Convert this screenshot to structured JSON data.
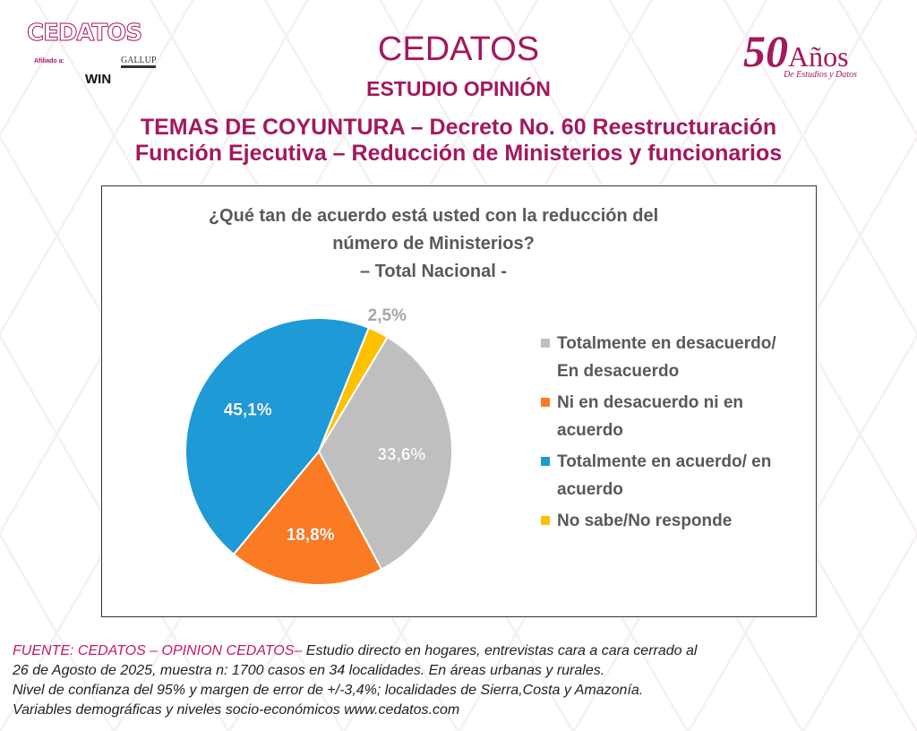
{
  "header": {
    "logo": "CEDATOS",
    "affiliated": "Afiliado a:",
    "win": "WIN",
    "gallup": "GALLUP",
    "title": "CEDATOS",
    "subtitle": "ESTUDIO OPINIÓN",
    "topic_line1": "TEMAS DE COYUNTURA – Decreto No. 60 Reestructuración",
    "topic_line2": "Función Ejecutiva – Reducción de Ministerios y funcionarios",
    "anniv_num": "50",
    "anniv_word": "Años",
    "anniv_sub": "De Estudios y Datos"
  },
  "chart_data": {
    "type": "pie",
    "title_line1": "¿Qué tan de acuerdo está usted con la reducción del",
    "title_line2": "número de Ministerios?",
    "title_line3": "– Total Nacional -",
    "slices": [
      {
        "label": "No sabe/No responde",
        "value": 2.5,
        "text": "2,5%",
        "color": "#ffc000"
      },
      {
        "label": "Totalmente en desacuerdo/ En desacuerdo",
        "label1": "Totalmente en desacuerdo/",
        "label2": "En desacuerdo",
        "value": 33.6,
        "text": "33,6%",
        "color": "#bfbfbf"
      },
      {
        "label": "Ni en desacuerdo ni en acuerdo",
        "label1": "Ni en desacuerdo ni en",
        "label2": "acuerdo",
        "value": 18.8,
        "text": "18,8%",
        "color": "#fb7b24"
      },
      {
        "label": "Totalmente en acuerdo/ en acuerdo",
        "label1": "Totalmente en acuerdo/ en",
        "label2": "acuerdo",
        "value": 45.1,
        "text": "45,1%",
        "color": "#1e9ad6"
      }
    ],
    "legend_order": [
      1,
      2,
      3,
      0
    ],
    "legend_position": "right"
  },
  "footer": {
    "source": "FUENTE: CEDATOS – OPINION CEDATOS–",
    "line1": " Estudio directo en hogares, entrevistas cara a cara cerrado al",
    "line2": "26 de Agosto de 2025, muestra n: 1700 casos en 34 localidades. En áreas urbanas y rurales.",
    "line3": "Nivel de confianza del 95% y margen de error de +/-3,4%; localidades de Sierra,Costa y Amazonía.",
    "line4": "Variables demográficas y niveles socio-económicos  www.cedatos.com"
  }
}
